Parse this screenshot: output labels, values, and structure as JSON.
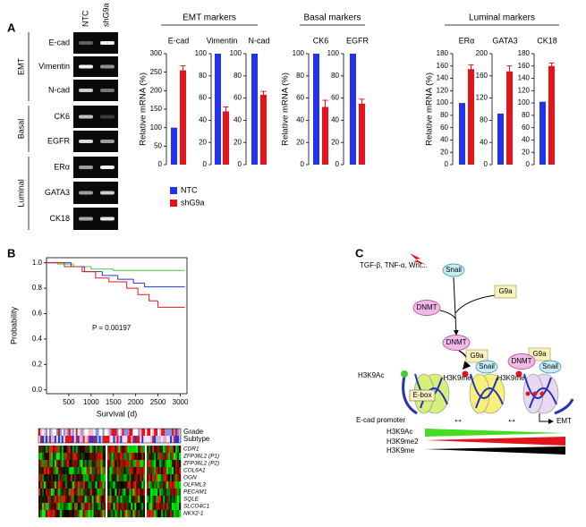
{
  "panel_a": {
    "label": "A",
    "gel": {
      "columns": [
        "NTC",
        "shG9a"
      ],
      "groups": [
        {
          "name": "EMT",
          "rows": [
            "E-cad",
            "Vimentin",
            "N-cad"
          ]
        },
        {
          "name": "Basal",
          "rows": [
            "CK6",
            "EGFR"
          ]
        },
        {
          "name": "Luminal",
          "rows": [
            "ERα",
            "GATA3",
            "CK18"
          ]
        }
      ]
    },
    "groups": [
      "EMT markers",
      "Basal markers",
      "Luminal markers"
    ],
    "legend": [
      {
        "name": "NTC",
        "color": "#2233ee"
      },
      {
        "name": "shG9a",
        "color": "#e3141b"
      }
    ]
  },
  "chart_data": [
    {
      "type": "bar",
      "title": "E-cad",
      "ylabel": "Relative mRNA (%)",
      "values": [
        100,
        255
      ],
      "errors": [
        null,
        12
      ],
      "ylim": [
        0,
        300
      ],
      "yticks": [
        0,
        50,
        100,
        150,
        200,
        250,
        300
      ]
    },
    {
      "type": "bar",
      "title": "Vimentin",
      "values": [
        100,
        48
      ],
      "errors": [
        null,
        4
      ],
      "ylim": [
        0,
        100
      ],
      "yticks": [
        0,
        20,
        40,
        60,
        80,
        100
      ]
    },
    {
      "type": "bar",
      "title": "N-cad",
      "values": [
        100,
        63
      ],
      "errors": [
        null,
        3
      ],
      "ylim": [
        0,
        100
      ],
      "yticks": [
        0,
        20,
        40,
        60,
        80,
        100
      ]
    },
    {
      "type": "bar",
      "title": "CK6",
      "ylabel": "Relative mRNA (%)",
      "values": [
        100,
        52
      ],
      "errors": [
        null,
        6
      ],
      "ylim": [
        0,
        100
      ],
      "yticks": [
        0,
        20,
        40,
        60,
        80,
        100
      ]
    },
    {
      "type": "bar",
      "title": "EGFR",
      "values": [
        100,
        55
      ],
      "errors": [
        null,
        4
      ],
      "ylim": [
        0,
        100
      ],
      "yticks": [
        0,
        20,
        40,
        60,
        80,
        100
      ]
    },
    {
      "type": "bar",
      "title": "ERα",
      "ylabel": "Relative mRNA (%)",
      "values": [
        100,
        155
      ],
      "errors": [
        null,
        7
      ],
      "ylim": [
        0,
        180
      ],
      "yticks": [
        0,
        20,
        40,
        60,
        80,
        100,
        120,
        140,
        160,
        180
      ]
    },
    {
      "type": "bar",
      "title": "GATA3",
      "values": [
        92,
        168
      ],
      "errors": [
        null,
        10
      ],
      "ylim": [
        0,
        200
      ],
      "yticks": [
        0,
        40,
        80,
        120,
        160,
        200
      ]
    },
    {
      "type": "bar",
      "title": "CK18",
      "values": [
        102,
        160
      ],
      "errors": [
        null,
        5
      ],
      "ylim": [
        0,
        180
      ],
      "yticks": [
        0,
        20,
        40,
        60,
        80,
        100,
        120,
        140,
        160,
        180
      ]
    },
    {
      "type": "line",
      "step": true,
      "xlabel": "Survival (d)",
      "ylabel": "Probability",
      "annotation": "P = 0.00197",
      "xlim": [
        0,
        3150
      ],
      "xticks": [
        500,
        1000,
        1500,
        2000,
        2500,
        3000
      ],
      "ylim": [
        -0.03,
        1.04
      ],
      "yticks": [
        {
          "value": 0,
          "label": "0.0"
        },
        0.2,
        0.4,
        0.6,
        0.8,
        {
          "value": 1,
          "label": "1.0"
        }
      ],
      "series": [
        {
          "color": "#44cc33",
          "x": [
            0,
            250,
            600,
            1000,
            1500,
            3100
          ],
          "values": [
            1,
            0.99,
            0.97,
            0.95,
            0.94,
            0.94
          ]
        },
        {
          "color": "#2233ee",
          "x": [
            0,
            550,
            850,
            1250,
            1600,
            1950,
            2200,
            3100
          ],
          "values": [
            1,
            0.97,
            0.93,
            0.9,
            0.87,
            0.84,
            0.81,
            0.81
          ]
        },
        {
          "color": "#e3141b",
          "x": [
            0,
            400,
            800,
            1100,
            1400,
            1800,
            2050,
            2300,
            2500,
            3100
          ],
          "values": [
            1,
            0.97,
            0.93,
            0.88,
            0.85,
            0.8,
            0.75,
            0.7,
            0.65,
            0.65
          ]
        }
      ]
    }
  ],
  "panel_b": {
    "label": "B",
    "heatmap": {
      "tracks": [
        "Grade",
        "Subtype"
      ],
      "genes": [
        "CDR1",
        "ZFP36L2 (P1)",
        "ZFP36L2 (P2)",
        "COL6A1",
        "OGN",
        "OLFML3",
        "PECAM1",
        "SQLE",
        "SLCO4C1",
        "NKX2-1"
      ]
    }
  },
  "panel_c": {
    "label": "C",
    "labels": [
      "TGF-β, TNF-α, Wnt...",
      "Snail",
      "G9a",
      "DNMT",
      "DNMT",
      "G9a",
      "Snail",
      "G9a",
      "DNMT",
      "Snail",
      "H3K9Ac",
      "H3K9me",
      "H3K9me",
      "E-box",
      "E-cad promoter",
      "EMT",
      "H3K9Ac",
      "H3K9me2",
      "H3K9me"
    ]
  }
}
